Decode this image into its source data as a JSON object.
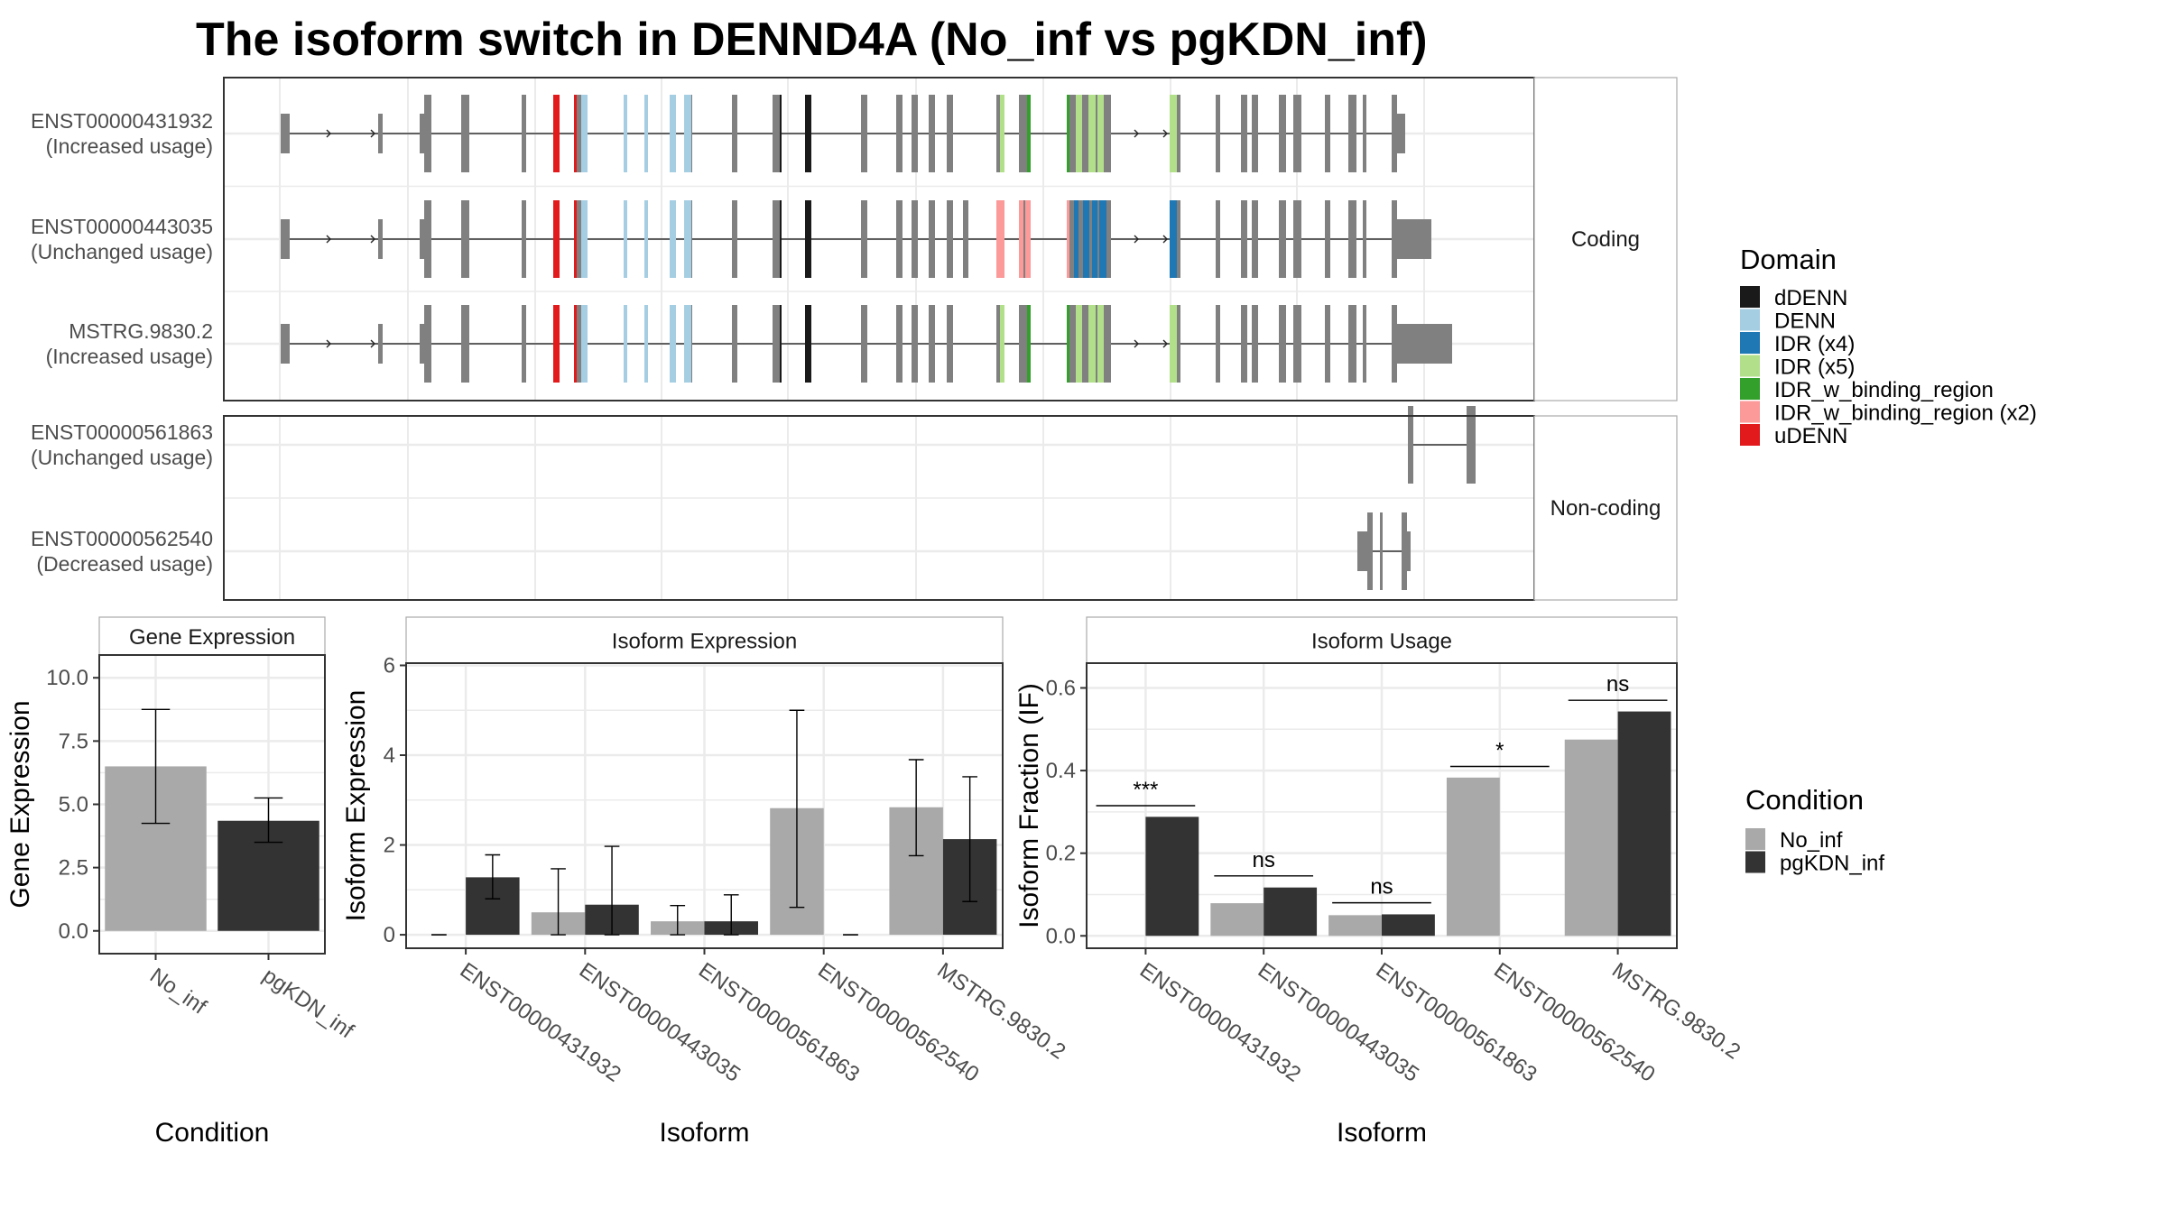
{
  "title": "The isoform switch in DENND4A (No_inf vs pgKDN_inf)",
  "colors": {
    "exon": "#808080",
    "no_inf": "#a9a9a9",
    "pgkdn_inf": "#333333",
    "grid": "#ebebeb",
    "panel_border": "#333333",
    "strip_border": "#aaaaaa"
  },
  "domain_legend": {
    "title": "Domain",
    "items": [
      {
        "label": "dDENN",
        "color": "#1a1a1a"
      },
      {
        "label": "DENN",
        "color": "#a6cee3"
      },
      {
        "label": "IDR (x4)",
        "color": "#1f78b4"
      },
      {
        "label": "IDR (x5)",
        "color": "#b2df8a"
      },
      {
        "label": "IDR_w_binding_region",
        "color": "#33a02c"
      },
      {
        "label": "IDR_w_binding_region (x2)",
        "color": "#fb9a99"
      },
      {
        "label": "uDENN",
        "color": "#e31a1c"
      }
    ]
  },
  "condition_legend": {
    "title": "Condition",
    "items": [
      {
        "label": "No_inf",
        "color": "#a9a9a9"
      },
      {
        "label": "pgKDN_inf",
        "color": "#333333"
      }
    ]
  },
  "structure": {
    "groups": [
      {
        "label": "Coding",
        "transcripts": [
          {
            "id": "ENST00000431932",
            "usage": "(Increased usage)"
          },
          {
            "id": "ENST00000443035",
            "usage": "(Unchanged usage)"
          },
          {
            "id": "MSTRG.9830.2",
            "usage": "(Increased usage)"
          }
        ]
      },
      {
        "label": "Non-coding",
        "transcripts": [
          {
            "id": "ENST00000561863",
            "usage": "(Unchanged usage)"
          },
          {
            "id": "ENST00000562540",
            "usage": "(Decreased usage)"
          }
        ]
      }
    ]
  },
  "chart_data": [
    {
      "type": "bar",
      "title": "Gene Expression",
      "xlabel": "Condition",
      "ylabel": "Gene Expression",
      "categories": [
        "No_inf",
        "pgKDN_inf"
      ],
      "values": [
        6.5,
        4.35
      ],
      "error_low": [
        4.25,
        3.5
      ],
      "error_high": [
        8.75,
        5.25
      ],
      "yticks": [
        "0.0",
        "2.5",
        "5.0",
        "7.5",
        "10.0"
      ],
      "ylim": [
        -0.9,
        10.9
      ]
    },
    {
      "type": "bar",
      "title": "Isoform Expression",
      "xlabel": "Isoform",
      "ylabel": "Isoform Expression",
      "categories": [
        "ENST00000431932",
        "ENST00000443035",
        "ENST00000561863",
        "ENST00000562540",
        "MSTRG.9830.2"
      ],
      "series": [
        {
          "name": "No_inf",
          "values": [
            0,
            0.5,
            0.3,
            2.82,
            2.84
          ],
          "error_low": [
            0,
            0,
            0,
            0.61,
            1.76
          ],
          "error_high": [
            0,
            1.47,
            0.65,
            5.0,
            3.9
          ]
        },
        {
          "name": "pgKDN_inf",
          "values": [
            1.28,
            0.67,
            0.3,
            0,
            2.13
          ],
          "error_low": [
            0.8,
            0,
            0,
            0,
            0.74
          ],
          "error_high": [
            1.78,
            1.97,
            0.89,
            0,
            3.52
          ]
        }
      ],
      "yticks": [
        "0",
        "2",
        "4",
        "6"
      ],
      "ylim": [
        -0.3,
        6.05
      ]
    },
    {
      "type": "bar",
      "title": "Isoform Usage",
      "xlabel": "Isoform",
      "ylabel": "Isoform Fraction (IF)",
      "categories": [
        "ENST00000431932",
        "ENST00000443035",
        "ENST00000561863",
        "ENST00000562540",
        "MSTRG.9830.2"
      ],
      "series": [
        {
          "name": "No_inf",
          "values": [
            0,
            0.079,
            0.05,
            0.383,
            0.475
          ]
        },
        {
          "name": "pgKDN_inf",
          "values": [
            0.288,
            0.117,
            0.052,
            0,
            0.543
          ]
        }
      ],
      "significance": [
        "***",
        "ns",
        "ns",
        "*",
        "ns"
      ],
      "significance_level": [
        0.315,
        0.145,
        0.08,
        0.41,
        0.57
      ],
      "yticks": [
        "0.0",
        "0.2",
        "0.4",
        "0.6"
      ],
      "ylim": [
        -0.03,
        0.66
      ]
    }
  ]
}
